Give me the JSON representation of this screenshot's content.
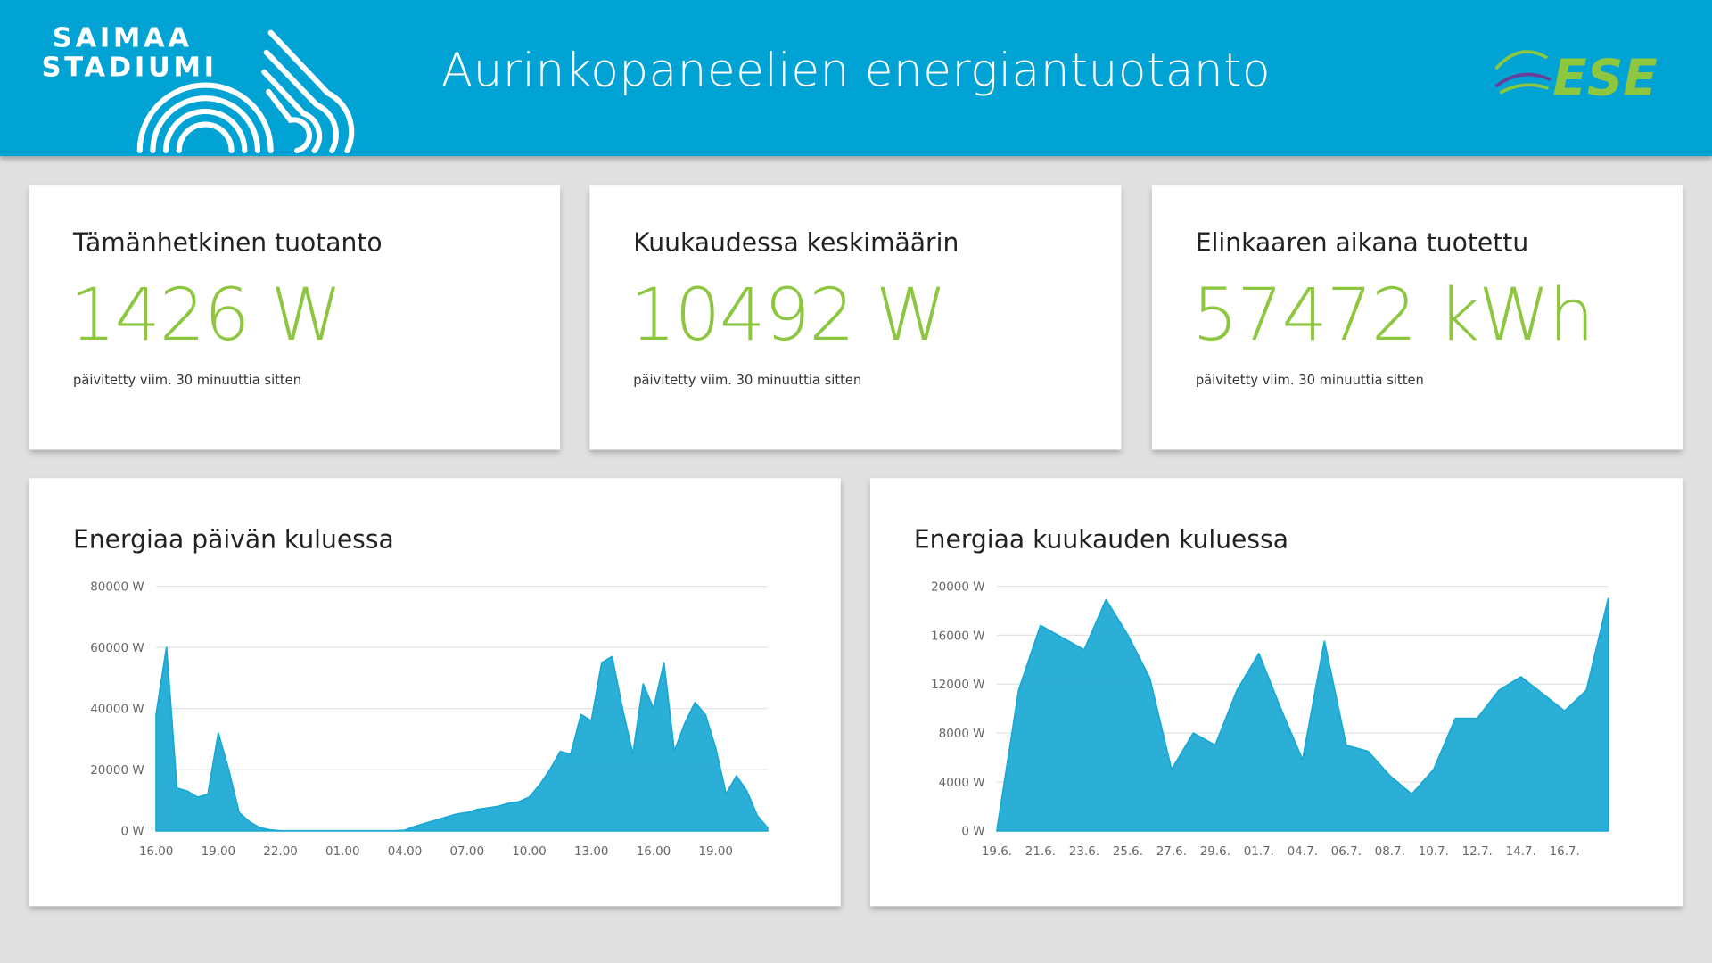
{
  "header": {
    "title": "Aurinkopaneelien energiantuotanto",
    "logo_left": [
      "SAIMAA",
      "STADIUMI"
    ],
    "logo_right": "ESE"
  },
  "cards": [
    {
      "title": "Tämänhetkinen tuotanto",
      "value": "1426 W",
      "note": "päivitetty viim. 30 minuuttia sitten"
    },
    {
      "title": "Kuukaudessa keskimäärin",
      "value": "10492 W",
      "note": "päivitetty viim. 30 minuuttia sitten"
    },
    {
      "title": "Elinkaaren aikana tuotettu",
      "value": "57472 kWh",
      "note": "päivitetty viim. 30 minuuttia sitten"
    }
  ],
  "chart_data": [
    {
      "type": "area",
      "title": "Energiaa päivän kuluessa",
      "categories": [
        "16.00",
        null,
        null,
        null,
        null,
        null,
        "19.00",
        null,
        null,
        null,
        null,
        null,
        "22.00",
        null,
        null,
        null,
        null,
        null,
        "01.00",
        null,
        null,
        null,
        null,
        null,
        "04.00",
        null,
        null,
        null,
        null,
        null,
        "07.00",
        null,
        null,
        null,
        null,
        null,
        "10.00",
        null,
        null,
        null,
        null,
        null,
        "13.00",
        null,
        null,
        null,
        null,
        null,
        "16.00",
        null,
        null,
        null,
        null,
        null,
        "19.00",
        null,
        null,
        null,
        null,
        null
      ],
      "values": [
        38000,
        60000,
        14000,
        13000,
        11000,
        12000,
        32000,
        20000,
        6000,
        3000,
        1000,
        300,
        0,
        0,
        0,
        0,
        0,
        0,
        0,
        0,
        0,
        0,
        0,
        0,
        200,
        1500,
        2500,
        3500,
        4500,
        5500,
        6000,
        7000,
        7500,
        8000,
        9000,
        9500,
        11000,
        15000,
        20000,
        26000,
        25000,
        38000,
        36000,
        55000,
        57000,
        40000,
        25000,
        48000,
        40000,
        55000,
        26000,
        35000,
        42000,
        38000,
        27000,
        12000,
        18000,
        13000,
        5000,
        1000
      ],
      "color": "#1aa8d4",
      "grid": true,
      "ylim": [
        0,
        80000
      ],
      "yticks": [
        {
          "value": 0,
          "label": "0 W"
        },
        {
          "value": 20000,
          "label": "20000 W"
        },
        {
          "value": 40000,
          "label": "40000 W"
        },
        {
          "value": 60000,
          "label": "60000 W"
        },
        {
          "value": 80000,
          "label": "80000 W"
        }
      ]
    },
    {
      "type": "area",
      "title": "Energiaa kuukauden kuluessa",
      "categories": [
        "19.6.",
        null,
        "21.6.",
        null,
        "23.6.",
        null,
        "25.6.",
        null,
        "27.6.",
        null,
        "29.6.",
        null,
        "01.7.",
        null,
        "04.7.",
        null,
        "06.7.",
        null,
        "08.7.",
        null,
        "10.7.",
        null,
        "12.7.",
        null,
        "14.7.",
        null,
        "16.7.",
        null,
        null
      ],
      "values": [
        0,
        11500,
        16800,
        15800,
        14800,
        18900,
        16000,
        12500,
        5000,
        8000,
        7000,
        11500,
        14500,
        10000,
        5800,
        15500,
        7000,
        6500,
        4500,
        3000,
        5000,
        9200,
        9200,
        11500,
        12600,
        11200,
        9800,
        11500,
        19000
      ],
      "color": "#1aa8d4",
      "grid": true,
      "ylim": [
        0,
        20000
      ],
      "yticks": [
        {
          "value": 0,
          "label": "0 W"
        },
        {
          "value": 4000,
          "label": "4000 W"
        },
        {
          "value": 8000,
          "label": "8000 W"
        },
        {
          "value": 12000,
          "label": "12000 W"
        },
        {
          "value": 16000,
          "label": "16000 W"
        },
        {
          "value": 20000,
          "label": "20000 W"
        }
      ]
    }
  ]
}
